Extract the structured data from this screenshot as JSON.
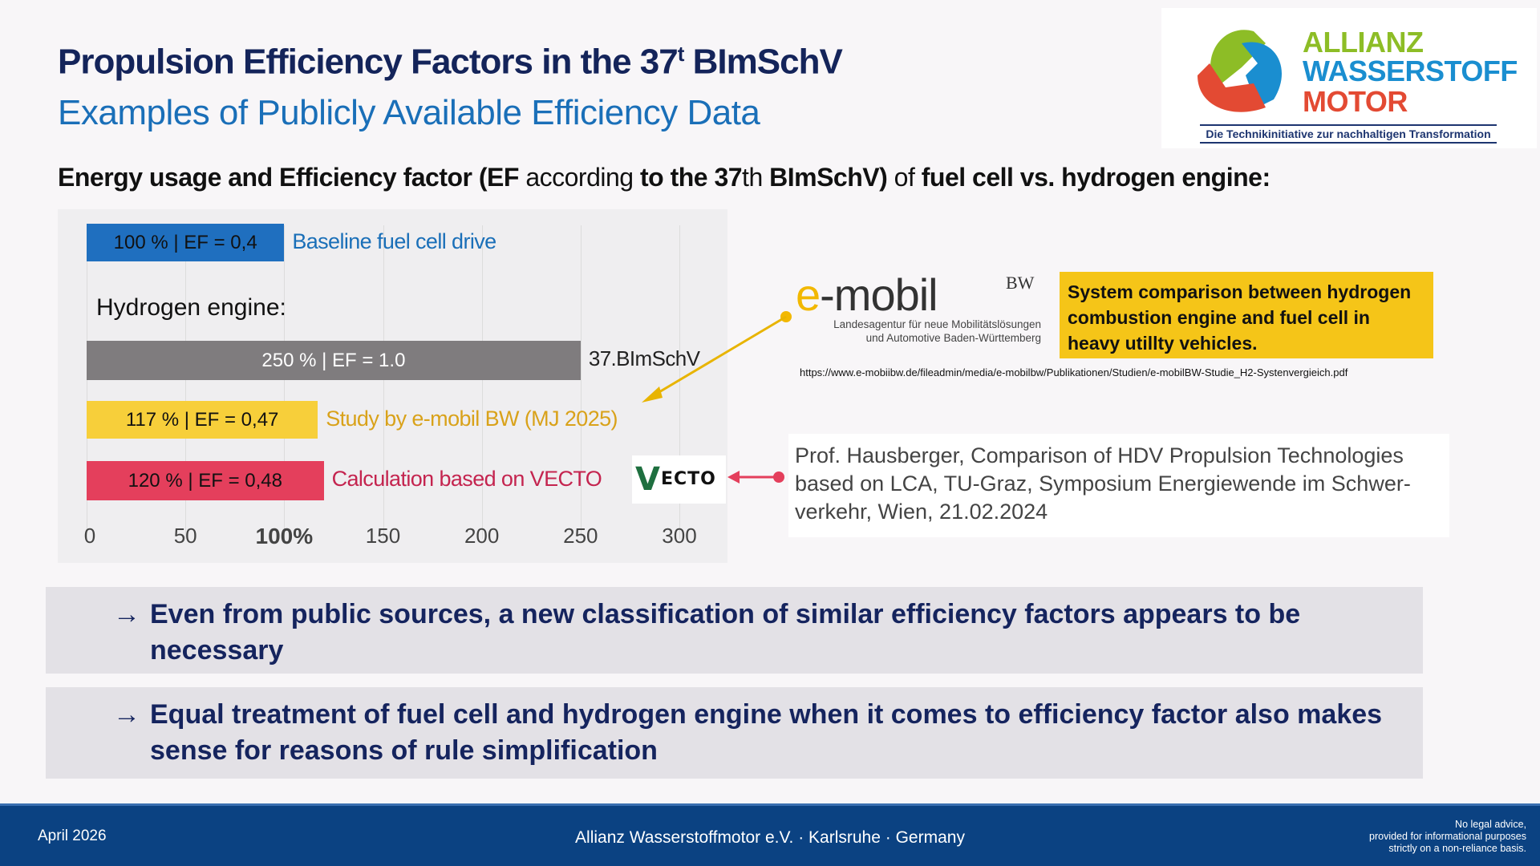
{
  "header": {
    "title_main": "Propulsion Efficiency Factors in the 37",
    "title_sup": "t",
    "title_end": "BImSchV",
    "subtitle": "Examples of Publicly Available Efficiency Data"
  },
  "heading": {
    "p1": "Energy usage and Efficiency factor (EF",
    "p2": "according",
    "p3": "to the 37",
    "p4": "th",
    "p5": "BImSchV)",
    "p6": "of",
    "p7": "fuel cell vs. hydrogen engine:"
  },
  "logo": {
    "line1": "ALLIANZ",
    "line2": "WASSERSTOFF",
    "line3": "MOTOR",
    "tagline": "Die Technikinitiative zur nachhaltigen Transformation"
  },
  "chart_data": {
    "type": "bar",
    "orientation": "horizontal",
    "group_label": "Hydrogen engine:",
    "xticks": [
      "0",
      "50",
      "100%",
      "150",
      "200",
      "250",
      "300"
    ],
    "xtick_values": [
      0,
      50,
      100,
      150,
      200,
      250,
      300
    ],
    "xlim": [
      0,
      300
    ],
    "bars": [
      {
        "value": 100,
        "label": "100 % | EF = 0,4",
        "annotation": "Baseline fuel cell drive",
        "color": "#1f6fbf",
        "text_color": "#111",
        "annotation_color": "#1a6fb8"
      },
      {
        "value": 250,
        "label": "250 % | EF = 1.0",
        "annotation": "37.BImSchV",
        "color": "#7f7c7e",
        "text_color": "#fff",
        "annotation_color": "#222"
      },
      {
        "value": 117,
        "label": "117 % | EF = 0,47",
        "annotation": "Study by e-mobil BW (MJ 2025)",
        "color": "#f7cf3a",
        "text_color": "#111",
        "annotation_color": "#d9a21a"
      },
      {
        "value": 120,
        "label": "120 % | EF = 0,48",
        "annotation": "Calculation based on VECTO",
        "color": "#e43f5c",
        "text_color": "#111",
        "annotation_color": "#c4244f"
      }
    ]
  },
  "vecto_logo": "VECTO",
  "emobil": {
    "name_e": "e",
    "name_rest": "-mobil",
    "bw": "BW",
    "sub1": "Landesagentur für neue Mobilitätslösungen",
    "sub2": "und Automotive Baden-Württemberg"
  },
  "study_box": "System comparison between hydrogen combustion engine and fuel cell in heavy utillty vehicles.",
  "study_url": "https://www.e-mobiibw.de/fileadmin/media/e-mobilbw/Publikationen/Studien/e-mobilBW-Studie_H2-Systenvergieich.pdf",
  "prof_source": "Prof. Hausberger, Comparison of HDV Propulsion Technologies based on LCA, TU-Graz, Symposium Energiewende im Schwer-verkehr, Wien, 21.02.2024",
  "conclusions": [
    {
      "arrow": "→",
      "text": "Even from public sources, a new classification of similar efficiency factors appears to be necessary"
    },
    {
      "arrow": "→",
      "text": "Equal treatment of fuel cell and hydrogen engine when it comes to efficiency factor also makes sense for reasons of rule simplification"
    }
  ],
  "footer": {
    "date": "April 2026",
    "center": "Allianz Wasserstoffmotor e.V. · Karlsruhe · Germany",
    "note1": "No legal advice,",
    "note2": "provided for informational purposes",
    "note3": "strictly on a non-reliance basis."
  }
}
